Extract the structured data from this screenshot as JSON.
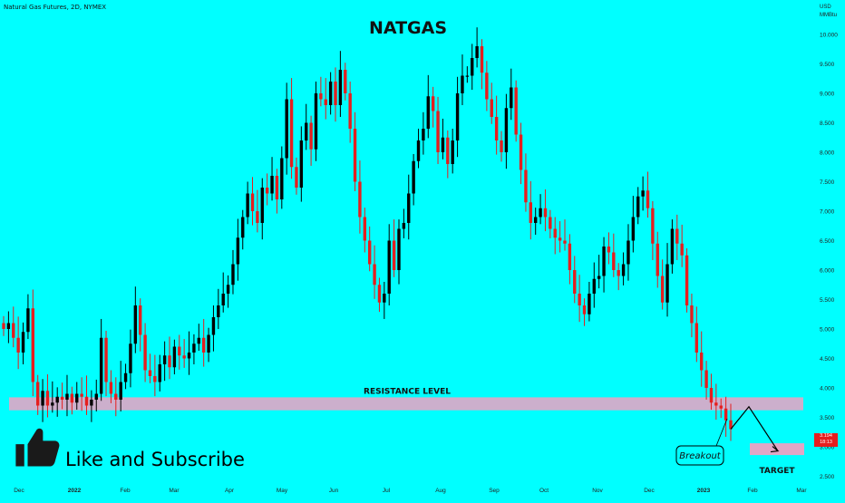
{
  "header": {
    "symbol_line": "Natural Gas Futures, 2D, NYMEX",
    "currency": "USD",
    "unit": "MMBtu",
    "title": "NATGAS"
  },
  "overlay": {
    "like_text": "Like and Subscribe",
    "resistance_label": "RESISTANCE LEVEL",
    "breakout_label": "Breakout",
    "target_label": "TARGET",
    "last_price": "3.194",
    "countdown": "18:13"
  },
  "colors": {
    "background": "#00FFFF",
    "up": "#000000",
    "down": "#E51E1E",
    "zone": "#E2A6C6"
  },
  "chart_data": {
    "type": "candlestick",
    "title": "NATGAS",
    "ylim": [
      2.4,
      10.4
    ],
    "y_ticks": [
      "10.000",
      "9.500",
      "9.000",
      "8.500",
      "8.000",
      "7.500",
      "7.000",
      "6.500",
      "6.000",
      "5.500",
      "5.000",
      "4.500",
      "4.000",
      "3.500",
      "3.000",
      "2.500"
    ],
    "x_ticks": [
      "Dec",
      "2022",
      "Feb",
      "Mar",
      "Apr",
      "May",
      "Jun",
      "Jul",
      "Aug",
      "Sep",
      "Oct",
      "Nov",
      "Dec",
      "2023",
      "Feb",
      "Mar"
    ],
    "resistance_zone": [
      3.62,
      3.84
    ],
    "target_zone": [
      2.86,
      3.06
    ],
    "projection": [
      [
        3.2,
        3.68
      ],
      [
        3.8,
        2.93
      ]
    ],
    "close_series": [
      5.0,
      5.1,
      4.85,
      4.6,
      4.95,
      5.35,
      4.1,
      3.7,
      3.95,
      3.7,
      3.75,
      3.85,
      3.8,
      3.9,
      3.75,
      3.9,
      3.85,
      3.7,
      3.8,
      3.9,
      4.85,
      4.1,
      3.9,
      3.8,
      4.1,
      4.25,
      4.75,
      5.4,
      4.9,
      4.3,
      4.2,
      4.1,
      4.4,
      4.55,
      4.35,
      4.7,
      4.55,
      4.5,
      4.6,
      4.75,
      4.85,
      4.6,
      4.9,
      5.2,
      5.4,
      5.6,
      5.75,
      6.1,
      6.55,
      6.9,
      7.3,
      7.0,
      6.8,
      7.4,
      7.3,
      7.6,
      7.2,
      7.9,
      8.9,
      7.75,
      7.4,
      8.2,
      8.5,
      8.05,
      9.0,
      8.9,
      8.8,
      9.2,
      8.8,
      9.4,
      9.0,
      8.4,
      7.5,
      6.9,
      6.5,
      6.1,
      5.75,
      5.45,
      5.6,
      6.5,
      6.0,
      6.7,
      6.8,
      7.3,
      7.85,
      8.2,
      8.4,
      8.95,
      8.7,
      8.0,
      8.25,
      7.8,
      8.2,
      9.0,
      9.3,
      9.3,
      9.6,
      9.8,
      9.35,
      8.9,
      8.6,
      8.2,
      8.0,
      8.75,
      9.1,
      8.3,
      7.7,
      7.15,
      6.8,
      6.9,
      7.05,
      6.9,
      6.7,
      6.55,
      6.5,
      6.45,
      6.0,
      5.6,
      5.4,
      5.25,
      5.6,
      5.85,
      5.9,
      6.4,
      6.3,
      6.0,
      5.9,
      6.1,
      6.5,
      6.9,
      7.25,
      7.35,
      7.05,
      6.45,
      5.9,
      5.45,
      6.1,
      6.7,
      6.45,
      6.25,
      5.4,
      5.1,
      4.6,
      4.3,
      4.0,
      3.75,
      3.7,
      3.65,
      3.45,
      3.3
    ]
  }
}
